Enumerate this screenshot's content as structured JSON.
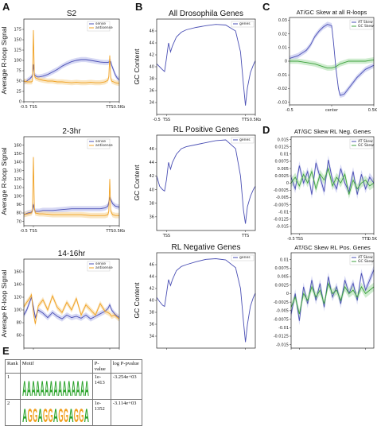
{
  "figure": {
    "panel_letters": [
      "A",
      "B",
      "C",
      "D",
      "E"
    ],
    "motif_table": {
      "headers": [
        "Rank",
        "Motif",
        "P-value",
        "log P-pvalue"
      ],
      "rows": [
        {
          "rank": "1",
          "motif": "AAAAAAAAAAAAAAA",
          "pvalue": "1e-1413",
          "log_pvalue": "-3.254e+03"
        },
        {
          "rank": "2",
          "motif": "AGGAGGAGGAGGA",
          "pvalue": "1e-1352",
          "log_pvalue": "-3.114e+03"
        }
      ]
    },
    "colors": {
      "blue": "#4a4fb4",
      "orange": "#f0a020",
      "green": "#3ea23e",
      "band_blue": "#c8cbf0",
      "band_orange": "#f8ddae",
      "band_green": "#bfe6bf"
    }
  },
  "chart_data": [
    {
      "id": "A1",
      "type": "line",
      "title": "S2",
      "ylabel": "Average R-loop Signal",
      "xticks": [
        "-0.5",
        "TSS",
        "TTS",
        "0.5Kb"
      ],
      "xtick_pos": [
        0,
        10,
        90,
        100
      ],
      "ylim": [
        0,
        200
      ],
      "yticks": [
        0,
        25,
        50,
        75,
        100,
        125,
        150,
        175
      ],
      "legend": [
        "sense",
        "antisense"
      ],
      "series": [
        {
          "name": "sense",
          "color": "#4a4fb4",
          "x": [
            0,
            2,
            4,
            6,
            8,
            9,
            10,
            11,
            12,
            14,
            16,
            20,
            25,
            30,
            35,
            40,
            45,
            50,
            55,
            60,
            65,
            70,
            75,
            80,
            85,
            88,
            89,
            90,
            91,
            92,
            94,
            96,
            98,
            100
          ],
          "y": [
            50,
            48,
            52,
            55,
            60,
            64,
            90,
            66,
            63,
            60,
            60,
            62,
            66,
            72,
            78,
            86,
            92,
            97,
            100,
            102,
            102,
            100,
            98,
            96,
            95,
            95,
            96,
            98,
            97,
            88,
            76,
            64,
            57,
            53
          ]
        },
        {
          "name": "antisense",
          "color": "#f0a020",
          "x": [
            0,
            2,
            4,
            6,
            8,
            9,
            10,
            11,
            12,
            14,
            16,
            20,
            25,
            30,
            35,
            40,
            45,
            50,
            55,
            60,
            65,
            70,
            75,
            80,
            85,
            88,
            89,
            90,
            91,
            92,
            94,
            96,
            98,
            100
          ],
          "y": [
            50,
            49,
            48,
            48,
            48,
            50,
            173,
            64,
            58,
            56,
            54,
            52,
            50,
            50,
            48,
            48,
            47,
            46,
            47,
            46,
            46,
            47,
            46,
            46,
            48,
            52,
            60,
            112,
            58,
            50,
            48,
            46,
            45,
            44
          ]
        }
      ]
    },
    {
      "id": "A2",
      "type": "line",
      "title": "2-3hr",
      "ylabel": "Average R-loop Signal",
      "xticks": [
        "-0.5",
        "TSS",
        "TTS",
        "0.5Kb"
      ],
      "xtick_pos": [
        0,
        10,
        90,
        100
      ],
      "ylim": [
        65,
        170
      ],
      "yticks": [
        70,
        80,
        90,
        100,
        110,
        120,
        130,
        140,
        150,
        160
      ],
      "legend": [
        "sense",
        "antisense"
      ],
      "series": [
        {
          "name": "sense",
          "color": "#4a4fb4",
          "x": [
            0,
            4,
            8,
            9,
            10,
            11,
            12,
            16,
            20,
            30,
            40,
            50,
            60,
            70,
            80,
            85,
            88,
            89,
            90,
            91,
            93,
            96,
            100
          ],
          "y": [
            78,
            80,
            81,
            83,
            90,
            84,
            82,
            82,
            83,
            83,
            84,
            85,
            85,
            85,
            85,
            86,
            88,
            93,
            98,
            96,
            91,
            88,
            87
          ]
        },
        {
          "name": "antisense",
          "color": "#f0a020",
          "x": [
            0,
            4,
            8,
            9,
            10,
            11,
            12,
            16,
            20,
            30,
            40,
            50,
            60,
            70,
            80,
            85,
            88,
            89,
            90,
            91,
            93,
            96,
            100
          ],
          "y": [
            78,
            79,
            80,
            82,
            146,
            86,
            80,
            79,
            79,
            78,
            78,
            78,
            78,
            77,
            77,
            77,
            78,
            82,
            120,
            82,
            78,
            77,
            77
          ]
        }
      ]
    },
    {
      "id": "A3",
      "type": "line",
      "title": "14-16hr",
      "ylabel": "Average R-loop Signal",
      "xticks": [
        "-0.5",
        "TSS",
        "TTS",
        "0.5Kb"
      ],
      "xtick_pos": [
        0,
        10,
        90,
        100
      ],
      "ylim": [
        40,
        180
      ],
      "yticks": [
        60,
        80,
        100,
        120,
        140,
        160
      ],
      "legend": [
        "sense",
        "antisense"
      ],
      "series": [
        {
          "name": "sense",
          "color": "#4a4fb4",
          "x": [
            0,
            3,
            6,
            8,
            10,
            12,
            15,
            20,
            25,
            30,
            35,
            40,
            45,
            50,
            55,
            60,
            65,
            70,
            75,
            80,
            85,
            88,
            90,
            92,
            95,
            98,
            100
          ],
          "y": [
            92,
            100,
            112,
            120,
            105,
            88,
            100,
            95,
            88,
            96,
            90,
            86,
            92,
            88,
            90,
            87,
            92,
            86,
            90,
            94,
            98,
            102,
            108,
            100,
            94,
            90,
            88
          ]
        },
        {
          "name": "antisense",
          "color": "#f0a020",
          "x": [
            0,
            3,
            6,
            8,
            10,
            12,
            15,
            20,
            25,
            30,
            35,
            40,
            45,
            50,
            55,
            60,
            65,
            70,
            75,
            80,
            85,
            88,
            90,
            92,
            95,
            98,
            100
          ],
          "y": [
            105,
            112,
            118,
            124,
            95,
            78,
            106,
            116,
            100,
            122,
            104,
            96,
            112,
            100,
            118,
            92,
            108,
            100,
            92,
            110,
            98,
            96,
            94,
            90,
            92,
            88,
            86
          ]
        }
      ]
    },
    {
      "id": "B1",
      "type": "line",
      "title": "All Drosophila Genes",
      "ylabel": "GC Content",
      "xticks": [
        "-0.5",
        "TSS",
        "TTS",
        "0.5Kb"
      ],
      "xtick_pos": [
        0,
        10,
        90,
        100
      ],
      "ylim": [
        32,
        48
      ],
      "yticks": [
        34,
        36,
        38,
        40,
        42,
        44,
        46
      ],
      "legend": [
        "genes"
      ],
      "series": [
        {
          "name": "genes",
          "color": "#4a4fb4",
          "x": [
            0,
            3,
            6,
            8,
            10,
            12,
            14,
            16,
            20,
            25,
            30,
            40,
            50,
            60,
            70,
            80,
            85,
            88,
            90,
            92,
            95,
            98,
            100
          ],
          "y": [
            40.5,
            40.0,
            39.5,
            39.2,
            41.5,
            44.0,
            42.5,
            43.5,
            45.0,
            45.8,
            46.2,
            46.6,
            46.9,
            47.1,
            47.0,
            46.0,
            42.5,
            37.0,
            33.5,
            36.5,
            39.0,
            40.3,
            41.0
          ]
        }
      ]
    },
    {
      "id": "B2",
      "type": "line",
      "title": "RL Positive Genes",
      "ylabel": "GC Content",
      "xticks": [
        "TSS",
        "TTS"
      ],
      "xtick_pos": [
        10,
        90
      ],
      "ylim": [
        34,
        48
      ],
      "yticks": [
        36,
        38,
        40,
        42,
        44,
        46
      ],
      "legend": [
        "genes"
      ],
      "series": [
        {
          "name": "genes",
          "color": "#4a4fb4",
          "x": [
            0,
            3,
            6,
            8,
            10,
            12,
            14,
            16,
            20,
            25,
            30,
            40,
            50,
            60,
            70,
            80,
            85,
            88,
            90,
            92,
            95,
            98,
            100
          ],
          "y": [
            42.0,
            40.5,
            40.0,
            39.8,
            41.5,
            44.0,
            43.0,
            44.0,
            45.2,
            46.0,
            46.3,
            46.6,
            46.9,
            47.2,
            47.3,
            46.0,
            42.0,
            37.0,
            35.0,
            37.5,
            39.0,
            40.0,
            40.5
          ]
        }
      ]
    },
    {
      "id": "B3",
      "type": "line",
      "title": "RL Negative Genes",
      "ylabel": "GC Content",
      "xticks": [
        "TSS",
        "TTS"
      ],
      "xtick_pos": [
        10,
        90
      ],
      "ylim": [
        32,
        48
      ],
      "yticks": [
        34,
        36,
        38,
        40,
        42,
        44,
        46
      ],
      "legend": [
        "genes"
      ],
      "series": [
        {
          "name": "genes",
          "color": "#4a4fb4",
          "x": [
            0,
            3,
            6,
            8,
            10,
            12,
            14,
            16,
            20,
            25,
            30,
            40,
            50,
            60,
            70,
            80,
            85,
            88,
            90,
            92,
            95,
            98,
            100
          ],
          "y": [
            40.5,
            39.8,
            39.2,
            39.0,
            41.2,
            43.5,
            42.5,
            43.5,
            45.0,
            45.7,
            46.0,
            46.5,
            46.9,
            47.0,
            46.8,
            45.5,
            42.0,
            36.5,
            33.0,
            36.0,
            39.0,
            40.5,
            41.2
          ]
        }
      ]
    },
    {
      "id": "C",
      "type": "line",
      "title": "AT/GC Skew at all R-loops",
      "ylabel": "",
      "xticks": [
        "-0.5",
        "center",
        "0.5Kb"
      ],
      "xtick_pos": [
        0,
        50,
        100
      ],
      "ylim": [
        -0.032,
        0.032
      ],
      "yticks": [
        -0.03,
        -0.02,
        -0.01,
        0.0,
        0.01,
        0.02,
        0.03
      ],
      "legend": [
        "AT Skew",
        "GC Skew"
      ],
      "series": [
        {
          "name": "AT Skew",
          "color": "#4a4fb4",
          "x": [
            0,
            10,
            20,
            25,
            30,
            35,
            40,
            45,
            50,
            52,
            55,
            58,
            60,
            65,
            70,
            80,
            90,
            100
          ],
          "y": [
            0.002,
            0.004,
            0.008,
            0.012,
            0.018,
            0.022,
            0.025,
            0.027,
            0.026,
            0.015,
            -0.005,
            -0.02,
            -0.025,
            -0.024,
            -0.02,
            -0.012,
            -0.006,
            -0.003
          ]
        },
        {
          "name": "GC Skew",
          "color": "#3ea23e",
          "x": [
            0,
            10,
            20,
            30,
            40,
            45,
            50,
            55,
            60,
            70,
            80,
            90,
            100
          ],
          "y": [
            0.0,
            0.0,
            -0.001,
            -0.002,
            -0.004,
            -0.005,
            -0.005,
            -0.004,
            -0.002,
            0.0,
            0.0,
            0.0,
            0.001
          ]
        }
      ]
    },
    {
      "id": "D1",
      "type": "line",
      "title": "AT/GC Skew RL Neg. Genes",
      "ylabel": "",
      "xticks": [
        "-0.5",
        "TSS",
        "TTS",
        "0.5Kb"
      ],
      "xtick_pos": [
        0,
        10,
        90,
        100
      ],
      "ylim": [
        -0.0175,
        0.016
      ],
      "yticks": [
        -0.015,
        -0.0125,
        -0.01,
        -0.0075,
        -0.005,
        -0.0025,
        0.0,
        0.0025,
        0.005,
        0.0075,
        0.01,
        0.0125,
        0.015
      ],
      "legend": [
        "AT Skew",
        "GC Skew"
      ],
      "series": [
        {
          "name": "AT Skew",
          "color": "#4a4fb4",
          "x": [
            0,
            5,
            10,
            15,
            20,
            25,
            30,
            35,
            40,
            45,
            50,
            55,
            60,
            65,
            70,
            75,
            80,
            85,
            90,
            95,
            100
          ],
          "y": [
            0.002,
            -0.002,
            0.006,
            0.0,
            0.004,
            -0.004,
            0.007,
            0.002,
            -0.003,
            0.008,
            0.001,
            -0.002,
            0.005,
            0.0,
            -0.003,
            0.004,
            -0.004,
            0.003,
            -0.002,
            0.002,
            0.0
          ]
        },
        {
          "name": "GC Skew",
          "color": "#3ea23e",
          "x": [
            0,
            5,
            10,
            15,
            20,
            25,
            30,
            35,
            40,
            45,
            50,
            55,
            60,
            65,
            70,
            75,
            80,
            85,
            90,
            95,
            100
          ],
          "y": [
            0.0,
            0.002,
            -0.001,
            0.003,
            0.0,
            0.004,
            -0.002,
            0.003,
            0.001,
            0.005,
            -0.001,
            0.002,
            0.0,
            0.003,
            -0.004,
            0.001,
            -0.002,
            0.0,
            0.001,
            -0.001,
            0.0
          ]
        }
      ]
    },
    {
      "id": "D2",
      "type": "line",
      "title": "AT/GC Skew RL Pos. Genes",
      "ylabel": "",
      "xticks": [
        "-0.5",
        "TSS",
        "TTS0.5Kb"
      ],
      "xtick_pos": [
        0,
        10,
        90
      ],
      "ylim": [
        -0.016,
        0.012
      ],
      "yticks": [
        -0.015,
        -0.0125,
        -0.01,
        -0.0075,
        -0.005,
        -0.0025,
        0.0,
        0.0025,
        0.005,
        0.0075,
        0.01
      ],
      "legend": [
        "AT Skew",
        "GC Skew"
      ],
      "series": [
        {
          "name": "AT Skew",
          "color": "#4a4fb4",
          "x": [
            0,
            5,
            10,
            15,
            20,
            25,
            30,
            35,
            40,
            45,
            50,
            55,
            60,
            65,
            70,
            75,
            80,
            85,
            90,
            95,
            100
          ],
          "y": [
            -0.006,
            0.0,
            -0.008,
            0.002,
            -0.003,
            0.004,
            -0.002,
            0.003,
            -0.004,
            0.005,
            -0.001,
            0.002,
            -0.003,
            0.004,
            0.0,
            0.003,
            -0.002,
            0.006,
            0.001,
            0.004,
            0.007
          ]
        },
        {
          "name": "GC Skew",
          "color": "#3ea23e",
          "x": [
            0,
            5,
            10,
            15,
            20,
            25,
            30,
            35,
            40,
            45,
            50,
            55,
            60,
            65,
            70,
            75,
            80,
            85,
            90,
            95,
            100
          ],
          "y": [
            -0.004,
            -0.001,
            -0.006,
            0.0,
            -0.002,
            0.002,
            -0.001,
            0.001,
            -0.003,
            0.003,
            0.0,
            0.001,
            -0.002,
            0.002,
            0.0,
            0.001,
            -0.001,
            0.002,
            0.0,
            0.001,
            0.002
          ]
        }
      ]
    }
  ]
}
